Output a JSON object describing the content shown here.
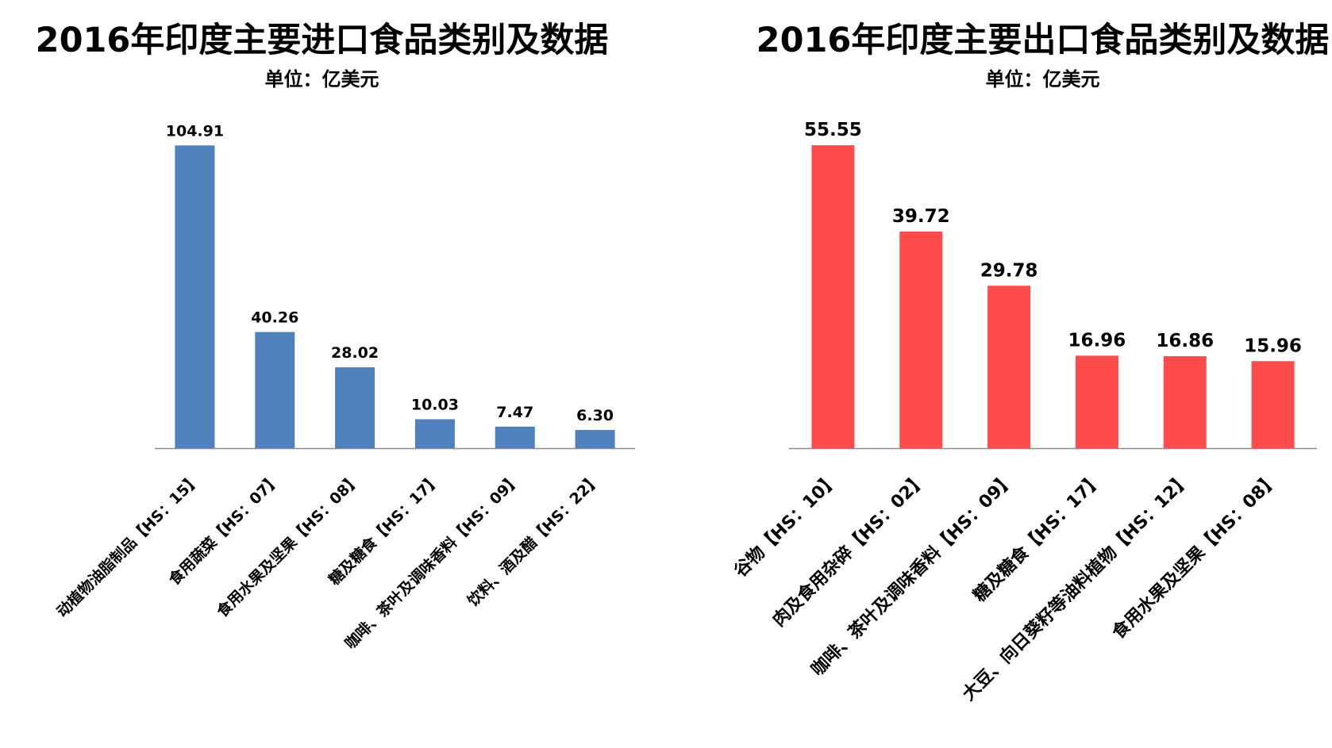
{
  "chart_data": [
    {
      "type": "bar",
      "title": "2016年印度主要进口食品类别及数据",
      "subtitle": "单位：亿美元",
      "categories": [
        "动植物油脂制品【HS：15】",
        "食用蔬菜【HS：07】",
        "食用水果及坚果【HS：08】",
        "糖及糖食【HS：17】",
        "咖啡、茶叶及调味香料【HS：09】",
        "饮料、酒及醋【HS：22】"
      ],
      "values": [
        104.91,
        40.26,
        28.02,
        10.03,
        7.47,
        6.3
      ],
      "value_labels": [
        "104.91",
        "40.26",
        "28.02",
        "10.03",
        "7.47",
        "6.30"
      ],
      "color": "#4f81bd",
      "ylim": [
        0,
        105
      ],
      "grid": false,
      "legend": "none"
    },
    {
      "type": "bar",
      "title": "2016年印度主要出口食品类别及数据",
      "subtitle": "单位：亿美元",
      "categories": [
        "谷物【HS：10】",
        "肉及食用杂碎【HS：02】",
        "咖啡、茶叶及调味香料【HS：09】",
        "糖及糖食【HS：17】",
        "大豆、向日葵籽等油料植物【HS：12】",
        "食用水果及坚果【HS：08】"
      ],
      "values": [
        55.55,
        39.72,
        29.78,
        16.96,
        16.86,
        15.96
      ],
      "value_labels": [
        "55.55",
        "39.72",
        "29.78",
        "16.96",
        "16.86",
        "15.96"
      ],
      "color": "#ff4b4b",
      "ylim": [
        0,
        56
      ],
      "grid": false,
      "legend": "none"
    }
  ]
}
